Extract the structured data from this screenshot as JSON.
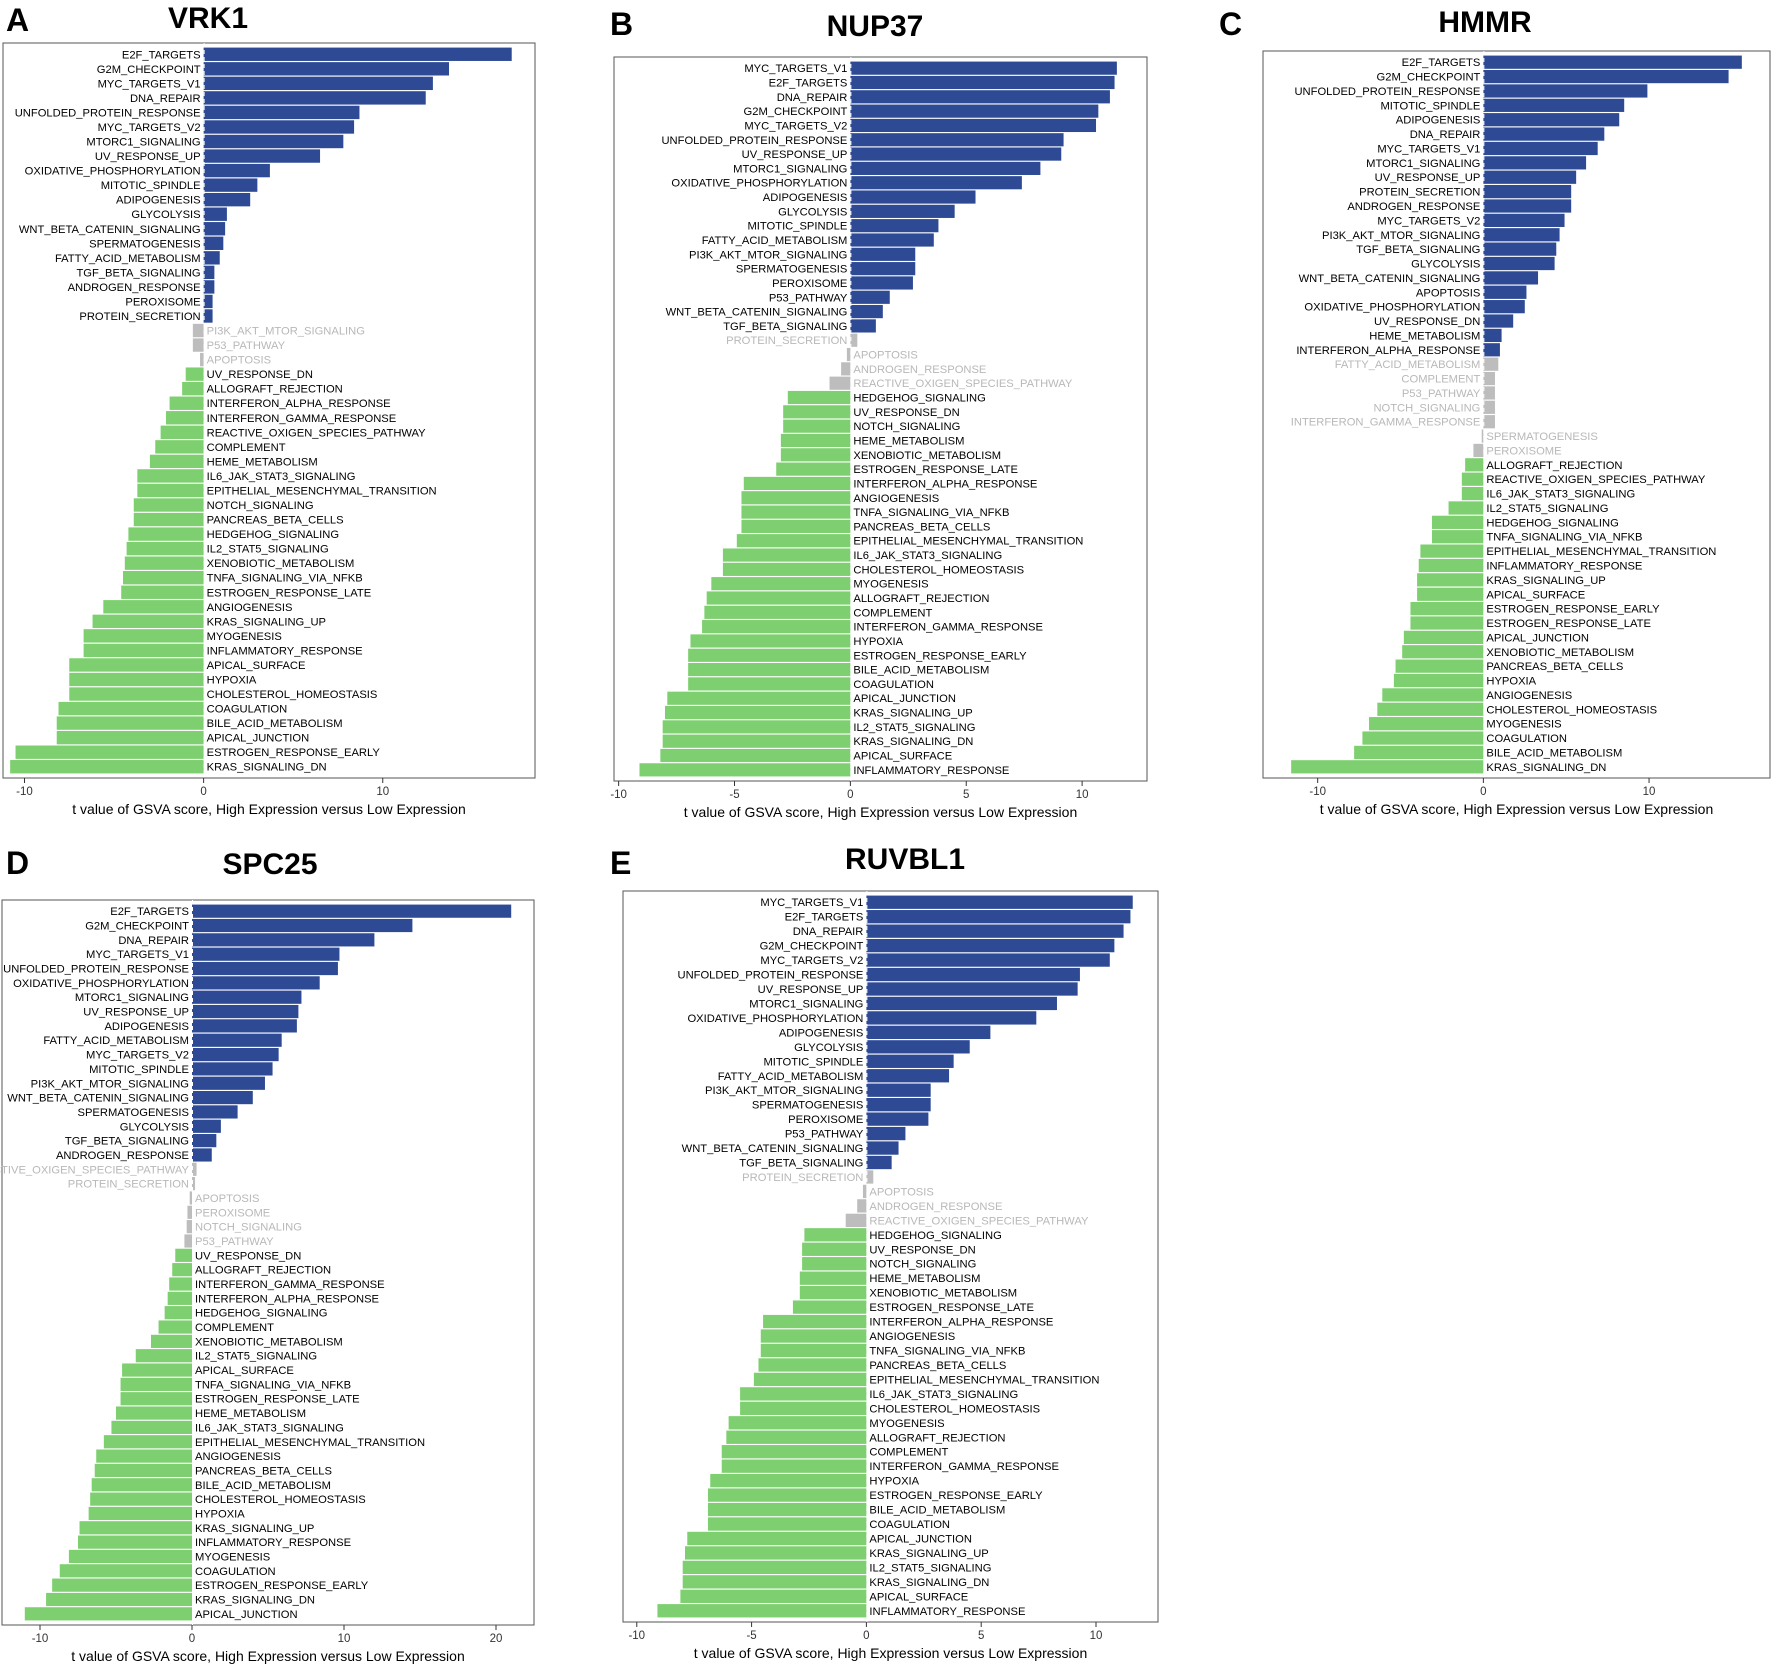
{
  "figure": {
    "axis_label": "t value of GSVA score, High Expression versus Low Expression",
    "colors": {
      "up": "#2E4A94",
      "down": "#7DCF6F",
      "ns": "#BDBDBD",
      "ns_text": "#B8B8B8",
      "text": "#000000"
    }
  },
  "chart_data": [
    {
      "type": "bar",
      "panel": "A",
      "title": "VRK1",
      "xlabel": "t value of GSVA score, High Expression versus Low Expression",
      "xlim": [
        -11.2,
        18.5
      ],
      "xticks": [
        -10,
        0,
        10
      ],
      "categories": [
        "E2F_TARGETS",
        "G2M_CHECKPOINT",
        "MYC_TARGETS_V1",
        "DNA_REPAIR",
        "UNFOLDED_PROTEIN_RESPONSE",
        "MYC_TARGETS_V2",
        "MTORC1_SIGNALING",
        "UV_RESPONSE_UP",
        "OXIDATIVE_PHOSPHORYLATION",
        "MITOTIC_SPINDLE",
        "ADIPOGENESIS",
        "GLYCOLYSIS",
        "WNT_BETA_CATENIN_SIGNALING",
        "SPERMATOGENESIS",
        "FATTY_ACID_METABOLISM",
        "TGF_BETA_SIGNALING",
        "ANDROGEN_RESPONSE",
        "PEROXISOME",
        "PROTEIN_SECRETION",
        "PI3K_AKT_MTOR_SIGNALING",
        "P53_PATHWAY",
        "APOPTOSIS",
        "UV_RESPONSE_DN",
        "ALLOGRAFT_REJECTION",
        "INTERFERON_ALPHA_RESPONSE",
        "INTERFERON_GAMMA_RESPONSE",
        "REACTIVE_OXIGEN_SPECIES_PATHWAY",
        "COMPLEMENT",
        "HEME_METABOLISM",
        "IL6_JAK_STAT3_SIGNALING",
        "EPITHELIAL_MESENCHYMAL_TRANSITION",
        "NOTCH_SIGNALING",
        "PANCREAS_BETA_CELLS",
        "HEDGEHOG_SIGNALING",
        "IL2_STAT5_SIGNALING",
        "XENOBIOTIC_METABOLISM",
        "TNFA_SIGNALING_VIA_NFKB",
        "ESTROGEN_RESPONSE_LATE",
        "ANGIOGENESIS",
        "KRAS_SIGNALING_UP",
        "MYOGENESIS",
        "INFLAMMATORY_RESPONSE",
        "APICAL_SURFACE",
        "HYPOXIA",
        "CHOLESTEROL_HOMEOSTASIS",
        "COAGULATION",
        "BILE_ACID_METABOLISM",
        "APICAL_JUNCTION",
        "ESTROGEN_RESPONSE_EARLY",
        "KRAS_SIGNALING_DN"
      ],
      "values": [
        17.2,
        13.7,
        12.8,
        12.4,
        8.7,
        8.4,
        7.8,
        6.5,
        3.7,
        3.0,
        2.6,
        1.3,
        1.2,
        1.1,
        0.9,
        0.6,
        0.6,
        0.5,
        0.5,
        -0.6,
        -0.6,
        -0.2,
        -1.0,
        -1.2,
        -1.9,
        -2.1,
        -2.4,
        -2.7,
        -3.0,
        -3.7,
        -3.7,
        -3.9,
        -3.9,
        -4.2,
        -4.3,
        -4.4,
        -4.5,
        -4.6,
        -5.6,
        -6.2,
        -6.7,
        -6.7,
        -7.5,
        -7.5,
        -7.5,
        -8.1,
        -8.2,
        -8.2,
        -10.5,
        -10.8
      ],
      "significant": [
        true,
        true,
        true,
        true,
        true,
        true,
        true,
        true,
        true,
        true,
        true,
        true,
        true,
        true,
        true,
        true,
        true,
        true,
        true,
        false,
        false,
        false,
        true,
        true,
        true,
        true,
        true,
        true,
        true,
        true,
        true,
        true,
        true,
        true,
        true,
        true,
        true,
        true,
        true,
        true,
        true,
        true,
        true,
        true,
        true,
        true,
        true,
        true,
        true,
        true
      ]
    },
    {
      "type": "bar",
      "panel": "B",
      "title": "NUP37",
      "xlabel": "t value of GSVA score, High Expression versus Low Expression",
      "xlim": [
        -10.2,
        12.8
      ],
      "xticks": [
        -10,
        -5,
        0,
        5,
        10
      ],
      "categories": [
        "MYC_TARGETS_V1",
        "E2F_TARGETS",
        "DNA_REPAIR",
        "G2M_CHECKPOINT",
        "MYC_TARGETS_V2",
        "UNFOLDED_PROTEIN_RESPONSE",
        "UV_RESPONSE_UP",
        "MTORC1_SIGNALING",
        "OXIDATIVE_PHOSPHORYLATION",
        "ADIPOGENESIS",
        "GLYCOLYSIS",
        "MITOTIC_SPINDLE",
        "FATTY_ACID_METABOLISM",
        "PI3K_AKT_MTOR_SIGNALING",
        "SPERMATOGENESIS",
        "PEROXISOME",
        "P53_PATHWAY",
        "WNT_BETA_CATENIN_SIGNALING",
        "TGF_BETA_SIGNALING",
        "PROTEIN_SECRETION",
        "APOPTOSIS",
        "ANDROGEN_RESPONSE",
        "REACTIVE_OXIGEN_SPECIES_PATHWAY",
        "HEDGEHOG_SIGNALING",
        "UV_RESPONSE_DN",
        "NOTCH_SIGNALING",
        "HEME_METABOLISM",
        "XENOBIOTIC_METABOLISM",
        "ESTROGEN_RESPONSE_LATE",
        "INTERFERON_ALPHA_RESPONSE",
        "ANGIOGENESIS",
        "TNFA_SIGNALING_VIA_NFKB",
        "PANCREAS_BETA_CELLS",
        "EPITHELIAL_MESENCHYMAL_TRANSITION",
        "IL6_JAK_STAT3_SIGNALING",
        "CHOLESTEROL_HOMEOSTASIS",
        "MYOGENESIS",
        "ALLOGRAFT_REJECTION",
        "COMPLEMENT",
        "INTERFERON_GAMMA_RESPONSE",
        "HYPOXIA",
        "ESTROGEN_RESPONSE_EARLY",
        "BILE_ACID_METABOLISM",
        "COAGULATION",
        "APICAL_JUNCTION",
        "KRAS_SIGNALING_UP",
        "IL2_STAT5_SIGNALING",
        "KRAS_SIGNALING_DN",
        "APICAL_SURFACE",
        "INFLAMMATORY_RESPONSE"
      ],
      "values": [
        11.5,
        11.4,
        11.2,
        10.7,
        10.6,
        9.2,
        9.1,
        8.2,
        7.4,
        5.4,
        4.5,
        3.8,
        3.6,
        2.8,
        2.8,
        2.7,
        1.7,
        1.4,
        1.1,
        0.3,
        -0.15,
        -0.4,
        -0.9,
        -2.7,
        -2.9,
        -2.9,
        -3.0,
        -3.0,
        -3.2,
        -4.6,
        -4.7,
        -4.7,
        -4.7,
        -4.9,
        -5.5,
        -5.5,
        -6.0,
        -6.2,
        -6.3,
        -6.4,
        -6.9,
        -7.0,
        -7.0,
        -7.0,
        -7.9,
        -8.0,
        -8.1,
        -8.1,
        -8.2,
        -9.1
      ],
      "significant": [
        true,
        true,
        true,
        true,
        true,
        true,
        true,
        true,
        true,
        true,
        true,
        true,
        true,
        true,
        true,
        true,
        true,
        true,
        true,
        false,
        false,
        false,
        false,
        true,
        true,
        true,
        true,
        true,
        true,
        true,
        true,
        true,
        true,
        true,
        true,
        true,
        true,
        true,
        true,
        true,
        true,
        true,
        true,
        true,
        true,
        true,
        true,
        true,
        true,
        true
      ]
    },
    {
      "type": "bar",
      "panel": "C",
      "title": "HMMR",
      "xlabel": "t value of GSVA score, High Expression versus Low Expression",
      "xlim": [
        -13.3,
        17.3
      ],
      "xticks": [
        -10,
        0,
        10
      ],
      "categories": [
        "E2F_TARGETS",
        "G2M_CHECKPOINT",
        "UNFOLDED_PROTEIN_RESPONSE",
        "MITOTIC_SPINDLE",
        "ADIPOGENESIS",
        "DNA_REPAIR",
        "MYC_TARGETS_V1",
        "MTORC1_SIGNALING",
        "UV_RESPONSE_UP",
        "PROTEIN_SECRETION",
        "ANDROGEN_RESPONSE",
        "MYC_TARGETS_V2",
        "PI3K_AKT_MTOR_SIGNALING",
        "TGF_BETA_SIGNALING",
        "GLYCOLYSIS",
        "WNT_BETA_CATENIN_SIGNALING",
        "APOPTOSIS",
        "OXIDATIVE_PHOSPHORYLATION",
        "UV_RESPONSE_DN",
        "HEME_METABOLISM",
        "INTERFERON_ALPHA_RESPONSE",
        "FATTY_ACID_METABOLISM",
        "COMPLEMENT",
        "P53_PATHWAY",
        "NOTCH_SIGNALING",
        "INTERFERON_GAMMA_RESPONSE",
        "SPERMATOGENESIS",
        "PEROXISOME",
        "ALLOGRAFT_REJECTION",
        "REACTIVE_OXIGEN_SPECIES_PATHWAY",
        "IL6_JAK_STAT3_SIGNALING",
        "IL2_STAT5_SIGNALING",
        "HEDGEHOG_SIGNALING",
        "TNFA_SIGNALING_VIA_NFKB",
        "EPITHELIAL_MESENCHYMAL_TRANSITION",
        "INFLAMMATORY_RESPONSE",
        "KRAS_SIGNALING_UP",
        "APICAL_SURFACE",
        "ESTROGEN_RESPONSE_EARLY",
        "ESTROGEN_RESPONSE_LATE",
        "APICAL_JUNCTION",
        "XENOBIOTIC_METABOLISM",
        "PANCREAS_BETA_CELLS",
        "HYPOXIA",
        "ANGIOGENESIS",
        "CHOLESTEROL_HOMEOSTASIS",
        "MYOGENESIS",
        "COAGULATION",
        "BILE_ACID_METABOLISM",
        "KRAS_SIGNALING_DN"
      ],
      "values": [
        15.6,
        14.8,
        9.9,
        8.5,
        8.2,
        7.3,
        6.9,
        6.2,
        5.6,
        5.3,
        5.3,
        4.9,
        4.6,
        4.4,
        4.3,
        3.3,
        2.6,
        2.5,
        1.8,
        1.1,
        1.0,
        0.9,
        0.7,
        0.7,
        0.7,
        0.7,
        -0.1,
        -0.6,
        -1.1,
        -1.3,
        -1.3,
        -2.1,
        -3.1,
        -3.1,
        -3.8,
        -3.9,
        -4.0,
        -4.0,
        -4.4,
        -4.4,
        -4.8,
        -4.9,
        -5.3,
        -5.4,
        -6.1,
        -6.4,
        -6.9,
        -7.3,
        -7.8,
        -11.6
      ],
      "significant": [
        true,
        true,
        true,
        true,
        true,
        true,
        true,
        true,
        true,
        true,
        true,
        true,
        true,
        true,
        true,
        true,
        true,
        true,
        true,
        true,
        true,
        false,
        false,
        false,
        false,
        false,
        false,
        false,
        true,
        true,
        true,
        true,
        true,
        true,
        true,
        true,
        true,
        true,
        true,
        true,
        true,
        true,
        true,
        true,
        true,
        true,
        true,
        true,
        true,
        true
      ]
    },
    {
      "type": "bar",
      "panel": "D",
      "title": "SPC25",
      "xlabel": "t value of GSVA score, High Expression versus Low Expression",
      "xlim": [
        -12.5,
        22.5
      ],
      "xticks": [
        -10,
        0,
        10,
        20
      ],
      "categories": [
        "E2F_TARGETS",
        "G2M_CHECKPOINT",
        "DNA_REPAIR",
        "MYC_TARGETS_V1",
        "UNFOLDED_PROTEIN_RESPONSE",
        "OXIDATIVE_PHOSPHORYLATION",
        "MTORC1_SIGNALING",
        "UV_RESPONSE_UP",
        "ADIPOGENESIS",
        "FATTY_ACID_METABOLISM",
        "MYC_TARGETS_V2",
        "MITOTIC_SPINDLE",
        "PI3K_AKT_MTOR_SIGNALING",
        "WNT_BETA_CATENIN_SIGNALING",
        "SPERMATOGENESIS",
        "GLYCOLYSIS",
        "TGF_BETA_SIGNALING",
        "ANDROGEN_RESPONSE",
        "REACTIVE_OXIGEN_SPECIES_PATHWAY",
        "PROTEIN_SECRETION",
        "APOPTOSIS",
        "PEROXISOME",
        "NOTCH_SIGNALING",
        "P53_PATHWAY",
        "UV_RESPONSE_DN",
        "ALLOGRAFT_REJECTION",
        "INTERFERON_GAMMA_RESPONSE",
        "INTERFERON_ALPHA_RESPONSE",
        "HEDGEHOG_SIGNALING",
        "COMPLEMENT",
        "XENOBIOTIC_METABOLISM",
        "IL2_STAT5_SIGNALING",
        "APICAL_SURFACE",
        "TNFA_SIGNALING_VIA_NFKB",
        "ESTROGEN_RESPONSE_LATE",
        "HEME_METABOLISM",
        "IL6_JAK_STAT3_SIGNALING",
        "EPITHELIAL_MESENCHYMAL_TRANSITION",
        "ANGIOGENESIS",
        "PANCREAS_BETA_CELLS",
        "BILE_ACID_METABOLISM",
        "CHOLESTEROL_HOMEOSTASIS",
        "HYPOXIA",
        "KRAS_SIGNALING_UP",
        "INFLAMMATORY_RESPONSE",
        "MYOGENESIS",
        "COAGULATION",
        "ESTROGEN_RESPONSE_EARLY",
        "KRAS_SIGNALING_DN",
        "APICAL_JUNCTION"
      ],
      "values": [
        21.0,
        14.5,
        12.0,
        9.7,
        9.6,
        8.4,
        7.2,
        7.0,
        6.9,
        5.9,
        5.7,
        5.3,
        4.8,
        4.0,
        3.0,
        1.9,
        1.6,
        1.3,
        0.3,
        0.2,
        -0.15,
        -0.3,
        -0.35,
        -0.5,
        -1.1,
        -1.3,
        -1.5,
        -1.6,
        -1.8,
        -2.2,
        -2.7,
        -3.7,
        -4.6,
        -4.7,
        -4.7,
        -5.0,
        -5.3,
        -5.8,
        -6.3,
        -6.4,
        -6.6,
        -6.7,
        -6.8,
        -7.4,
        -7.5,
        -8.1,
        -8.7,
        -9.2,
        -9.6,
        -11.0
      ],
      "significant": [
        true,
        true,
        true,
        true,
        true,
        true,
        true,
        true,
        true,
        true,
        true,
        true,
        true,
        true,
        true,
        true,
        true,
        true,
        false,
        false,
        false,
        false,
        false,
        false,
        true,
        true,
        true,
        true,
        true,
        true,
        true,
        true,
        true,
        true,
        true,
        true,
        true,
        true,
        true,
        true,
        true,
        true,
        true,
        true,
        true,
        true,
        true,
        true,
        true,
        true
      ]
    },
    {
      "type": "bar",
      "panel": "E",
      "title": "RUVBL1",
      "xlabel": "t value of GSVA score, High Expression versus Low Expression",
      "xlim": [
        -10.6,
        12.7
      ],
      "xticks": [
        -10,
        -5,
        0,
        5,
        10
      ],
      "categories": [
        "MYC_TARGETS_V1",
        "E2F_TARGETS",
        "DNA_REPAIR",
        "G2M_CHECKPOINT",
        "MYC_TARGETS_V2",
        "UNFOLDED_PROTEIN_RESPONSE",
        "UV_RESPONSE_UP",
        "MTORC1_SIGNALING",
        "OXIDATIVE_PHOSPHORYLATION",
        "ADIPOGENESIS",
        "GLYCOLYSIS",
        "MITOTIC_SPINDLE",
        "FATTY_ACID_METABOLISM",
        "PI3K_AKT_MTOR_SIGNALING",
        "SPERMATOGENESIS",
        "PEROXISOME",
        "P53_PATHWAY",
        "WNT_BETA_CATENIN_SIGNALING",
        "TGF_BETA_SIGNALING",
        "PROTEIN_SECRETION",
        "APOPTOSIS",
        "ANDROGEN_RESPONSE",
        "REACTIVE_OXIGEN_SPECIES_PATHWAY",
        "HEDGEHOG_SIGNALING",
        "UV_RESPONSE_DN",
        "NOTCH_SIGNALING",
        "HEME_METABOLISM",
        "XENOBIOTIC_METABOLISM",
        "ESTROGEN_RESPONSE_LATE",
        "INTERFERON_ALPHA_RESPONSE",
        "ANGIOGENESIS",
        "TNFA_SIGNALING_VIA_NFKB",
        "PANCREAS_BETA_CELLS",
        "EPITHELIAL_MESENCHYMAL_TRANSITION",
        "IL6_JAK_STAT3_SIGNALING",
        "CHOLESTEROL_HOMEOSTASIS",
        "MYOGENESIS",
        "ALLOGRAFT_REJECTION",
        "COMPLEMENT",
        "INTERFERON_GAMMA_RESPONSE",
        "HYPOXIA",
        "ESTROGEN_RESPONSE_EARLY",
        "BILE_ACID_METABOLISM",
        "COAGULATION",
        "APICAL_JUNCTION",
        "KRAS_SIGNALING_UP",
        "IL2_STAT5_SIGNALING",
        "KRAS_SIGNALING_DN",
        "APICAL_SURFACE",
        "INFLAMMATORY_RESPONSE"
      ],
      "values": [
        11.6,
        11.5,
        11.2,
        10.8,
        10.6,
        9.3,
        9.2,
        8.3,
        7.4,
        5.4,
        4.5,
        3.8,
        3.6,
        2.8,
        2.8,
        2.7,
        1.7,
        1.4,
        1.1,
        0.3,
        -0.15,
        -0.4,
        -0.9,
        -2.7,
        -2.8,
        -2.8,
        -2.9,
        -2.9,
        -3.2,
        -4.5,
        -4.6,
        -4.6,
        -4.7,
        -4.9,
        -5.5,
        -5.5,
        -6.0,
        -6.1,
        -6.3,
        -6.3,
        -6.8,
        -6.9,
        -6.9,
        -6.9,
        -7.8,
        -7.9,
        -8.0,
        -8.0,
        -8.1,
        -9.1
      ],
      "significant": [
        true,
        true,
        true,
        true,
        true,
        true,
        true,
        true,
        true,
        true,
        true,
        true,
        true,
        true,
        true,
        true,
        true,
        true,
        true,
        false,
        false,
        false,
        false,
        true,
        true,
        true,
        true,
        true,
        true,
        true,
        true,
        true,
        true,
        true,
        true,
        true,
        true,
        true,
        true,
        true,
        true,
        true,
        true,
        true,
        true,
        true,
        true,
        true,
        true,
        true
      ]
    }
  ]
}
